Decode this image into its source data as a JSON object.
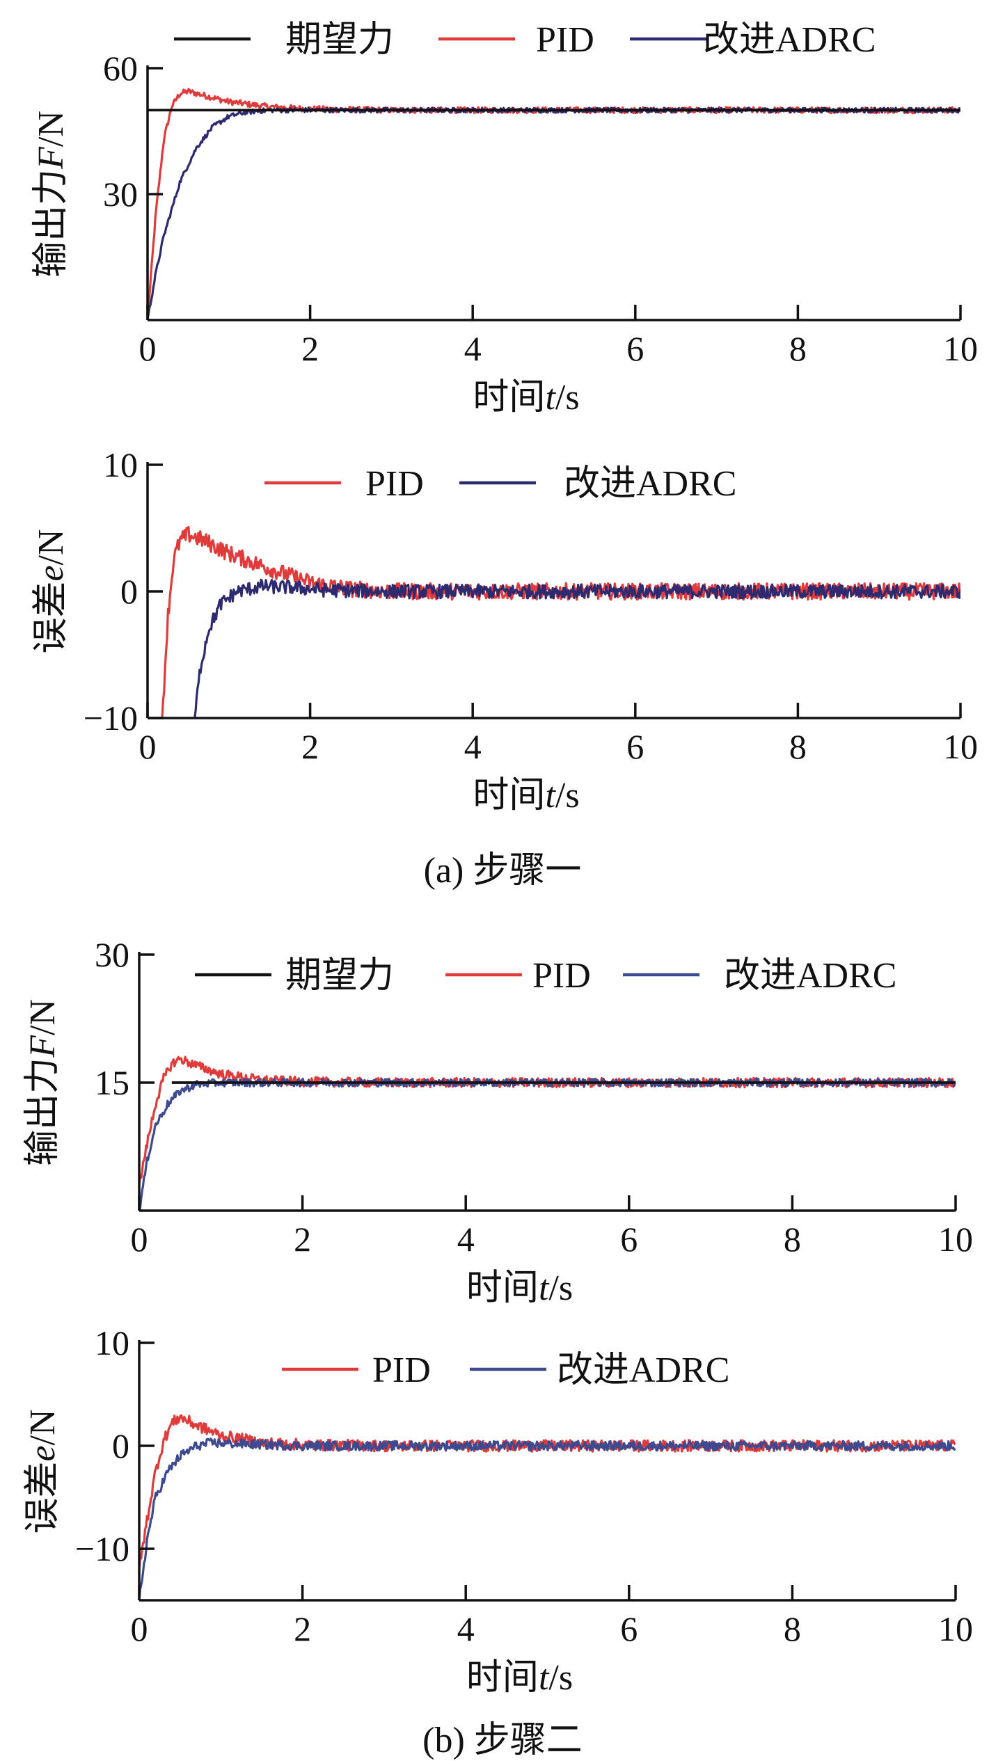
{
  "colors": {
    "desired": "#111111",
    "pid": "#e03a3a",
    "adrc_a": "#2e2a70",
    "adrc_b": "#3d4a8f",
    "axis": "#111111"
  },
  "subfigures": [
    {
      "caption": "(a) 步骤一"
    },
    {
      "caption": "(b) 步骤二"
    }
  ],
  "chart_data": [
    {
      "type": "line",
      "subfigure": "(a) 步骤一",
      "xlabel_prefix": "时间",
      "xlabel_var": "t",
      "xlabel_unit": "/s",
      "ylabel_prefix": "输出力",
      "ylabel_var": "F",
      "ylabel_unit": "/N",
      "xlim": [
        0,
        10
      ],
      "ylim": [
        0,
        60
      ],
      "xticks": [
        "0",
        "2",
        "4",
        "6",
        "8",
        "10"
      ],
      "yticks": [
        "60",
        "30"
      ],
      "ytick_values": [
        60,
        30
      ],
      "legend": [
        "期望力",
        "PID",
        "改进ADRC"
      ],
      "legend_position": "top",
      "series": [
        {
          "name": "期望力",
          "color": "#111111",
          "x": [
            0,
            10
          ],
          "y": [
            50,
            50
          ]
        },
        {
          "name": "PID",
          "color": "#e03a3a",
          "x": [
            0,
            0.1,
            0.2,
            0.3,
            0.4,
            0.5,
            0.7,
            1.0,
            1.5,
            2,
            3,
            4,
            5,
            6,
            7,
            8,
            9,
            10
          ],
          "y": [
            0,
            25,
            43,
            51,
            54,
            54.5,
            53.5,
            52,
            50.8,
            50.3,
            50,
            50,
            50,
            50,
            50,
            50,
            50,
            50
          ],
          "noise": 0.7
        },
        {
          "name": "改进ADRC",
          "color": "#2e2a70",
          "x": [
            0,
            0.1,
            0.2,
            0.4,
            0.6,
            0.8,
            1.0,
            1.2,
            1.5,
            2,
            3,
            4,
            5,
            6,
            7,
            8,
            9,
            10
          ],
          "y": [
            0,
            11,
            20,
            33,
            41,
            46,
            48.5,
            49.5,
            50,
            50,
            50,
            50,
            50,
            50,
            50,
            50,
            50,
            50
          ],
          "noise": 0.55
        }
      ]
    },
    {
      "type": "line",
      "subfigure": "(a) 步骤一",
      "xlabel_prefix": "时间",
      "xlabel_var": "t",
      "xlabel_unit": "/s",
      "ylabel_prefix": "误差",
      "ylabel_var": "e",
      "ylabel_unit": "/N",
      "xlim": [
        0,
        10
      ],
      "ylim": [
        -10,
        10
      ],
      "xticks": [
        "0",
        "2",
        "4",
        "6",
        "8",
        "10"
      ],
      "yticks": [
        "10",
        "0",
        "−10"
      ],
      "ytick_values": [
        10,
        0,
        -10
      ],
      "legend": [
        "PID",
        "改进ADRC"
      ],
      "legend_position": "top",
      "series": [
        {
          "name": "PID",
          "color": "#e03a3a",
          "x": [
            0.18,
            0.25,
            0.32,
            0.4,
            0.5,
            0.7,
            1.0,
            1.5,
            2.0,
            2.5,
            3,
            4,
            5,
            6,
            7,
            8,
            9,
            10
          ],
          "y": [
            -10,
            -2,
            2.5,
            4,
            4.5,
            4,
            3,
            1.8,
            0.7,
            0.2,
            0,
            0,
            0,
            0,
            0,
            0,
            0,
            0
          ],
          "noise": 0.65
        },
        {
          "name": "改进ADRC",
          "color": "#2e2a70",
          "x": [
            0.58,
            0.65,
            0.75,
            0.9,
            1.1,
            1.4,
            1.8,
            2.2,
            3,
            4,
            5,
            6,
            7,
            8,
            9,
            10
          ],
          "y": [
            -10,
            -6,
            -3,
            -1,
            0,
            0.4,
            0.3,
            0.1,
            0,
            0,
            0,
            0,
            0,
            0,
            0,
            0
          ],
          "noise": 0.55
        }
      ]
    },
    {
      "type": "line",
      "subfigure": "(b) 步骤二",
      "xlabel_prefix": "时间",
      "xlabel_var": "t",
      "xlabel_unit": "/s",
      "ylabel_prefix": "输出力",
      "ylabel_var": "F",
      "ylabel_unit": "/N",
      "xlim": [
        0,
        10
      ],
      "ylim": [
        0,
        30
      ],
      "xticks": [
        "0",
        "2",
        "4",
        "6",
        "8",
        "10"
      ],
      "yticks": [
        "30",
        "15"
      ],
      "ytick_values": [
        30,
        15
      ],
      "legend": [
        "期望力",
        "PID",
        "改进ADRC"
      ],
      "legend_position": "top",
      "series": [
        {
          "name": "期望力",
          "color": "#111111",
          "x": [
            0.4,
            10
          ],
          "y": [
            15,
            15
          ]
        },
        {
          "name": "PID",
          "color": "#e03a3a",
          "x": [
            0,
            0.1,
            0.2,
            0.3,
            0.4,
            0.5,
            0.7,
            1.0,
            1.5,
            2,
            3,
            4,
            5,
            6,
            7,
            8,
            9,
            10
          ],
          "y": [
            3,
            8,
            12.5,
            15.5,
            17.2,
            17.8,
            17,
            16,
            15.3,
            15.1,
            15,
            15,
            15,
            15,
            15,
            15,
            15,
            15
          ],
          "noise": 0.55
        },
        {
          "name": "改进ADRC",
          "color": "#3d4a8f",
          "x": [
            0,
            0.1,
            0.2,
            0.35,
            0.5,
            0.7,
            1.0,
            1.5,
            2,
            3,
            4,
            5,
            6,
            7,
            8,
            9,
            10
          ],
          "y": [
            0,
            6,
            10,
            12.5,
            14,
            14.8,
            15,
            15,
            15,
            15,
            15,
            15,
            15,
            15,
            15,
            15,
            15
          ],
          "noise": 0.45
        }
      ]
    },
    {
      "type": "line",
      "subfigure": "(b) 步骤二",
      "xlabel_prefix": "时间",
      "xlabel_var": "t",
      "xlabel_unit": "/s",
      "ylabel_prefix": "误差",
      "ylabel_var": "e",
      "ylabel_unit": "/N",
      "xlim": [
        0,
        10
      ],
      "ylim": [
        -15,
        10
      ],
      "xticks": [
        "0",
        "2",
        "4",
        "6",
        "8",
        "10"
      ],
      "yticks": [
        "10",
        "0",
        "−10"
      ],
      "ytick_values": [
        10,
        0,
        -10
      ],
      "legend": [
        "PID",
        "改进ADRC"
      ],
      "legend_position": "top",
      "series": [
        {
          "name": "PID",
          "color": "#e03a3a",
          "x": [
            0,
            0.1,
            0.2,
            0.3,
            0.4,
            0.5,
            0.7,
            1.0,
            1.5,
            2,
            3,
            4,
            5,
            6,
            7,
            8,
            9,
            10
          ],
          "y": [
            -12,
            -7,
            -2.5,
            0.5,
            2.2,
            2.8,
            2,
            1,
            0.3,
            0.1,
            0,
            0,
            0,
            0,
            0,
            0,
            0,
            0
          ],
          "noise": 0.55
        },
        {
          "name": "改进ADRC",
          "color": "#3d4a8f",
          "x": [
            0,
            0.1,
            0.2,
            0.35,
            0.5,
            0.7,
            0.9,
            1.2,
            1.6,
            2,
            3,
            4,
            5,
            6,
            7,
            8,
            9,
            10
          ],
          "y": [
            -15,
            -9,
            -5,
            -2.5,
            -1,
            0,
            0.3,
            0.2,
            0.1,
            0,
            0,
            0,
            0,
            0,
            0,
            0,
            0,
            0
          ],
          "noise": 0.45
        }
      ]
    }
  ]
}
